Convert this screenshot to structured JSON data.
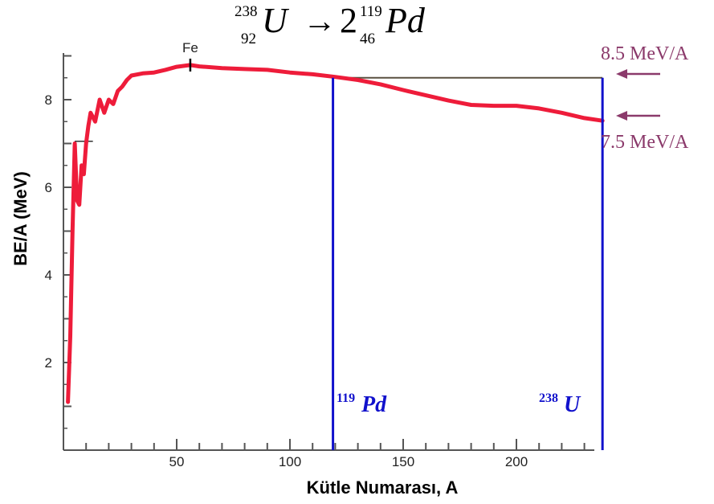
{
  "equation": {
    "parent_mass": "238",
    "parent_charge": "92",
    "parent_symbol": "U",
    "arrow": "→",
    "coefficient": "2",
    "daughter_mass": "119",
    "daughter_charge": "46",
    "daughter_symbol": "Pd"
  },
  "annotations": {
    "upper_value": "8.5 MeV/A",
    "lower_value": "7.5 MeV/A",
    "arrow_color": "#8b3a6b",
    "pd_mass": "119",
    "pd_symbol": "Pd",
    "u_mass": "238",
    "u_symbol": "U",
    "marker_color": "#1111cc"
  },
  "chart_data": {
    "type": "line",
    "xlabel": "Kütle Numarası, A",
    "ylabel": "BE/A (MeV)",
    "xlim": [
      0,
      240
    ],
    "ylim": [
      0,
      9
    ],
    "x_ticks": [
      50,
      100,
      150,
      200
    ],
    "y_ticks": [
      2,
      4,
      6,
      8
    ],
    "peak_label": "Fe",
    "peak_x": 56,
    "reference_line_y": 8.5,
    "vertical_markers": [
      119,
      238
    ],
    "line_color": "#ee1c3a",
    "series": [
      {
        "x": [
          2,
          3,
          4,
          5,
          6,
          7,
          8,
          9,
          10,
          11,
          12,
          13,
          14,
          16,
          18,
          20,
          22,
          24,
          26,
          28,
          30,
          35,
          40,
          45,
          50,
          56,
          60,
          70,
          80,
          90,
          100,
          110,
          120,
          130,
          140,
          150,
          160,
          170,
          180,
          190,
          200,
          210,
          220,
          230,
          238
        ],
        "y": [
          1.1,
          2.6,
          5.0,
          7.0,
          5.7,
          5.6,
          6.5,
          6.3,
          7.0,
          7.4,
          7.7,
          7.6,
          7.5,
          8.0,
          7.7,
          8.0,
          7.9,
          8.2,
          8.3,
          8.45,
          8.55,
          8.6,
          8.62,
          8.68,
          8.75,
          8.79,
          8.76,
          8.72,
          8.7,
          8.68,
          8.62,
          8.58,
          8.52,
          8.45,
          8.35,
          8.22,
          8.1,
          7.98,
          7.88,
          7.86,
          7.86,
          7.8,
          7.7,
          7.58,
          7.52
        ]
      }
    ]
  }
}
